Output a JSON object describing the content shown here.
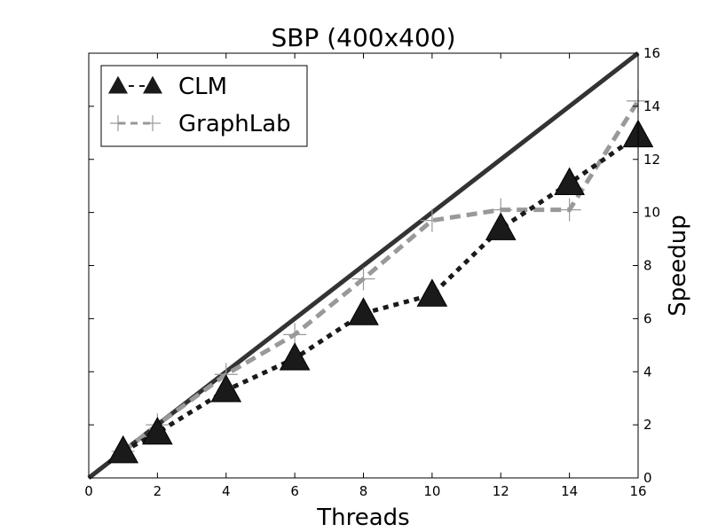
{
  "chart_data": {
    "type": "line",
    "title": "SBP (400x400)",
    "xlabel": "Threads",
    "ylabel": "Speedup",
    "xlim": [
      0,
      16
    ],
    "ylim": [
      0,
      16
    ],
    "x_ticks": [
      0,
      2,
      4,
      6,
      8,
      10,
      12,
      14,
      16
    ],
    "y_ticks": [
      0,
      2,
      4,
      6,
      8,
      10,
      12,
      14,
      16
    ],
    "y_axis_side": "right",
    "grid": false,
    "legend_position": "top-left",
    "series": [
      {
        "name": "CLM",
        "color": "#1a1a1a",
        "line_style": "dotted",
        "marker": "triangle",
        "x": [
          1,
          2,
          4,
          6,
          8,
          10,
          12,
          14,
          16
        ],
        "y": [
          1,
          1.7,
          3.3,
          4.5,
          6.2,
          6.9,
          9.4,
          11.1,
          12.9
        ]
      },
      {
        "name": "GraphLab",
        "color": "#999999",
        "line_style": "dashed",
        "marker": "plus",
        "x": [
          1,
          2,
          4,
          6,
          8,
          10,
          12,
          14,
          16
        ],
        "y": [
          1,
          2,
          3.9,
          5.4,
          7.5,
          9.7,
          10.1,
          10.1,
          14.2
        ]
      }
    ],
    "reference_line": {
      "color": "#333333",
      "x": [
        0,
        16
      ],
      "y": [
        0,
        16
      ]
    }
  }
}
